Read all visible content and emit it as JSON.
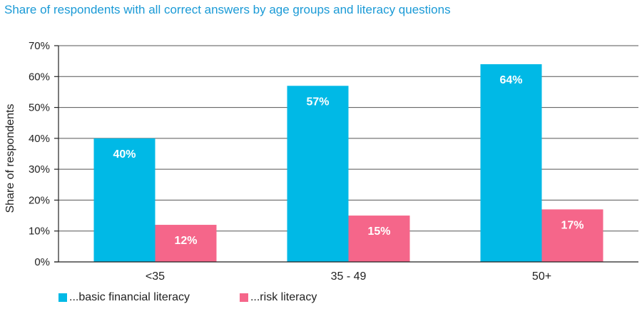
{
  "chart_data": {
    "type": "bar",
    "title": "Share of respondents with all correct answers by age groups and literacy questions",
    "ylabel": "Share of respondents",
    "xlabel": "",
    "ylim": [
      0,
      70
    ],
    "y_ticks": [
      "0%",
      "10%",
      "20%",
      "30%",
      "40%",
      "50%",
      "60%",
      "70%"
    ],
    "categories": [
      "<35",
      "35 - 49",
      "50+"
    ],
    "series": [
      {
        "name": "...basic financial literacy",
        "values": [
          40,
          57,
          64
        ],
        "labels": [
          "40%",
          "57%",
          "64%"
        ],
        "color": "#00b9e6"
      },
      {
        "name": "...risk literacy",
        "values": [
          12,
          15,
          17
        ],
        "labels": [
          "12%",
          "15%",
          "17%"
        ],
        "color": "#f5668a"
      }
    ],
    "grid": true,
    "legend_position": "bottom-left"
  }
}
